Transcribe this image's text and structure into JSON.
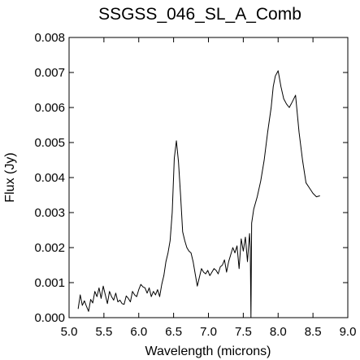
{
  "chart_data": {
    "type": "line",
    "title": "SSGSS_046_SL_A_Comb",
    "xlabel": "Wavelength (microns)",
    "ylabel": "Flux (Jy)",
    "xlim": [
      5.0,
      9.0
    ],
    "ylim": [
      0.0,
      0.008
    ],
    "grid": false,
    "xticks": [
      "5.0",
      "5.5",
      "6.0",
      "6.5",
      "7.0",
      "7.5",
      "8.0",
      "8.5",
      "9.0"
    ],
    "yticks": [
      "0.000",
      "0.001",
      "0.002",
      "0.003",
      "0.004",
      "0.005",
      "0.006",
      "0.007",
      "0.008"
    ],
    "series": [
      {
        "color": "#000000",
        "x": [
          5.13,
          5.16,
          5.19,
          5.22,
          5.25,
          5.28,
          5.31,
          5.34,
          5.37,
          5.4,
          5.43,
          5.46,
          5.49,
          5.52,
          5.55,
          5.58,
          5.61,
          5.64,
          5.67,
          5.7,
          5.73,
          5.76,
          5.79,
          5.82,
          5.85,
          5.88,
          5.91,
          5.94,
          5.97,
          6.0,
          6.03,
          6.06,
          6.09,
          6.12,
          6.15,
          6.18,
          6.21,
          6.24,
          6.27,
          6.3,
          6.33,
          6.36,
          6.39,
          6.42,
          6.45,
          6.48,
          6.51,
          6.54,
          6.57,
          6.6,
          6.63,
          6.66,
          6.69,
          6.72,
          6.75,
          6.78,
          6.81,
          6.84,
          6.87,
          6.9,
          6.93,
          6.96,
          6.99,
          7.02,
          7.05,
          7.08,
          7.11,
          7.14,
          7.17,
          7.2,
          7.23,
          7.26,
          7.29,
          7.32,
          7.35,
          7.38,
          7.41,
          7.44,
          7.47,
          7.5,
          7.53,
          7.56,
          7.58,
          7.59,
          7.6,
          7.61,
          7.62,
          7.65,
          7.7,
          7.75,
          7.8,
          7.85,
          7.9,
          7.93,
          7.96,
          8.0,
          8.04,
          8.08,
          8.12,
          8.16,
          8.2,
          8.25,
          8.3,
          8.35,
          8.4,
          8.45,
          8.5,
          8.55,
          8.6
        ],
        "y": [
          0.00025,
          0.00065,
          0.00035,
          0.00048,
          0.00032,
          0.00018,
          0.00052,
          0.00042,
          0.00075,
          0.0006,
          0.00085,
          0.00055,
          0.0009,
          0.00065,
          0.0004,
          0.00075,
          0.0006,
          0.0005,
          0.0007,
          0.00045,
          0.0005,
          0.0004,
          0.00038,
          0.00062,
          0.00055,
          0.00045,
          0.00075,
          0.00065,
          0.0006,
          0.0008,
          0.00095,
          0.00088,
          0.00085,
          0.0007,
          0.00085,
          0.0006,
          0.00075,
          0.00065,
          0.0008,
          0.0006,
          0.00095,
          0.0012,
          0.0016,
          0.00185,
          0.0022,
          0.003,
          0.00455,
          0.00505,
          0.00445,
          0.0035,
          0.00245,
          0.0022,
          0.002,
          0.0019,
          0.00185,
          0.0016,
          0.00125,
          0.0009,
          0.00115,
          0.0014,
          0.0013,
          0.00125,
          0.00135,
          0.0012,
          0.0013,
          0.0014,
          0.00135,
          0.00125,
          0.00145,
          0.0015,
          0.00165,
          0.0013,
          0.0016,
          0.0018,
          0.002,
          0.00185,
          0.00205,
          0.0014,
          0.00225,
          0.0019,
          0.0023,
          0.0016,
          0.00215,
          0.0024,
          0.002,
          0.0,
          0.0027,
          0.0031,
          0.00345,
          0.0039,
          0.0045,
          0.0053,
          0.006,
          0.0066,
          0.0069,
          0.00705,
          0.0066,
          0.00625,
          0.0061,
          0.006,
          0.00615,
          0.00635,
          0.0053,
          0.0045,
          0.00385,
          0.0037,
          0.00355,
          0.00345,
          0.00348
        ]
      }
    ]
  }
}
